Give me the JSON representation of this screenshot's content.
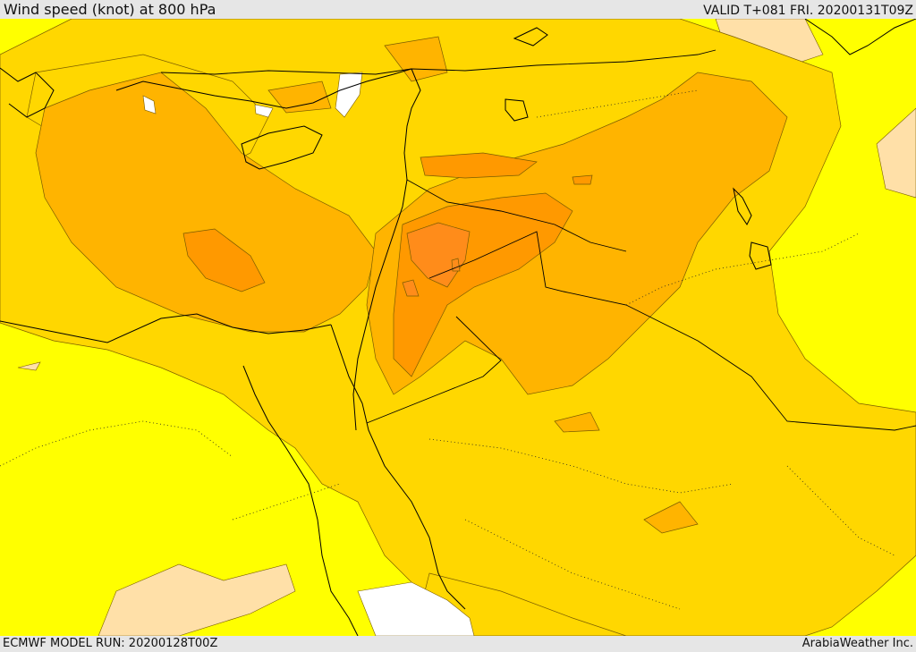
{
  "header": {
    "title": "Wind speed (knot) at 800 hPa",
    "valid_time": "VALID T+081 FRI. 20200131T09Z"
  },
  "footer": {
    "model_run": "ECMWF MODEL RUN: 20200128T00Z",
    "credit": "ArabiaWeather Inc."
  },
  "map": {
    "shading_levels": [
      {
        "level": "calm",
        "color": "#ffffff"
      },
      {
        "level": "very-light",
        "color": "#ffe0a8"
      },
      {
        "level": "light",
        "color": "#ffff00"
      },
      {
        "level": "moderate",
        "color": "#ffd700"
      },
      {
        "level": "fresh",
        "color": "#ffb400"
      },
      {
        "level": "strong",
        "color": "#ff9900"
      },
      {
        "level": "very-strong",
        "color": "#ff8c1a"
      }
    ],
    "contour_color": "#7a5c00",
    "border_style": "dotted",
    "coastline_color": "#000000"
  }
}
